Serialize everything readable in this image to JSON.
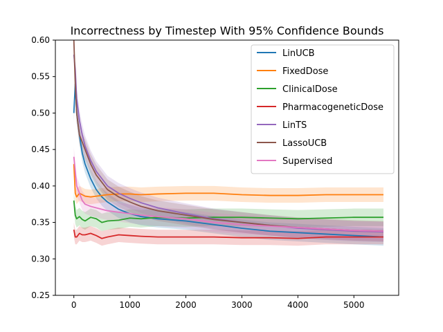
{
  "chart_data": {
    "type": "line",
    "title": "Incorrectness by Timestep With 95% Confidence Bounds",
    "xlabel": "",
    "ylabel": "",
    "xlim": [
      -330,
      5800
    ],
    "ylim": [
      0.25,
      0.6
    ],
    "x_ticks": [
      0,
      1000,
      2000,
      3000,
      4000,
      5000
    ],
    "y_ticks": [
      0.25,
      0.3,
      0.35,
      0.4,
      0.45,
      0.5,
      0.55,
      0.6
    ],
    "x_tick_labels": [
      "0",
      "1000",
      "2000",
      "3000",
      "4000",
      "5000"
    ],
    "y_tick_labels": [
      "0.25",
      "0.30",
      "0.35",
      "0.40",
      "0.45",
      "0.50",
      "0.55",
      "0.60"
    ],
    "grid": false,
    "legend_position": "top-right",
    "x": [
      0,
      25,
      50,
      100,
      150,
      200,
      300,
      400,
      500,
      600,
      800,
      1000,
      1200,
      1500,
      2000,
      2500,
      3000,
      3500,
      4000,
      4500,
      5000,
      5528
    ],
    "series": [
      {
        "name": "LinUCB",
        "color": "#1f77b4",
        "band": 0.012,
        "values": [
          0.5,
          0.54,
          0.5,
          0.47,
          0.445,
          0.43,
          0.41,
          0.395,
          0.385,
          0.378,
          0.368,
          0.362,
          0.358,
          0.355,
          0.352,
          0.347,
          0.342,
          0.338,
          0.336,
          0.334,
          0.332,
          0.33
        ]
      },
      {
        "name": "FixedDose",
        "color": "#ff7f0e",
        "band": 0.01,
        "values": [
          0.43,
          0.39,
          0.385,
          0.39,
          0.388,
          0.386,
          0.385,
          0.386,
          0.387,
          0.388,
          0.389,
          0.389,
          0.388,
          0.389,
          0.39,
          0.39,
          0.388,
          0.387,
          0.387,
          0.388,
          0.388,
          0.388
        ]
      },
      {
        "name": "ClinicalDose",
        "color": "#2ca02c",
        "band": 0.012,
        "values": [
          0.38,
          0.36,
          0.355,
          0.358,
          0.354,
          0.352,
          0.357,
          0.355,
          0.35,
          0.352,
          0.353,
          0.356,
          0.355,
          0.357,
          0.356,
          0.357,
          0.357,
          0.356,
          0.355,
          0.356,
          0.357,
          0.357
        ]
      },
      {
        "name": "PharmacogeneticDose",
        "color": "#d62728",
        "band": 0.01,
        "values": [
          0.34,
          0.33,
          0.33,
          0.335,
          0.333,
          0.333,
          0.335,
          0.332,
          0.328,
          0.33,
          0.333,
          0.332,
          0.331,
          0.33,
          0.33,
          0.33,
          0.329,
          0.329,
          0.328,
          0.33,
          0.33,
          0.33
        ]
      },
      {
        "name": "LinTS",
        "color": "#9467bd",
        "band": 0.014,
        "values": [
          0.58,
          0.56,
          0.52,
          0.49,
          0.47,
          0.455,
          0.435,
          0.42,
          0.41,
          0.4,
          0.39,
          0.383,
          0.377,
          0.37,
          0.362,
          0.355,
          0.35,
          0.346,
          0.342,
          0.34,
          0.338,
          0.337
        ]
      },
      {
        "name": "LassoUCB",
        "color": "#8c564b",
        "band": 0.014,
        "values": [
          0.6,
          0.54,
          0.5,
          0.47,
          0.46,
          0.45,
          0.43,
          0.415,
          0.405,
          0.395,
          0.385,
          0.378,
          0.372,
          0.366,
          0.36,
          0.354,
          0.35,
          0.346,
          0.343,
          0.341,
          0.339,
          0.338
        ]
      },
      {
        "name": "Supervised",
        "color": "#e377c2",
        "band": 0.013,
        "values": [
          0.44,
          0.42,
          0.4,
          0.39,
          0.38,
          0.375,
          0.372,
          0.37,
          0.368,
          0.366,
          0.364,
          0.362,
          0.36,
          0.358,
          0.355,
          0.35,
          0.347,
          0.345,
          0.343,
          0.341,
          0.339,
          0.338
        ]
      }
    ]
  }
}
